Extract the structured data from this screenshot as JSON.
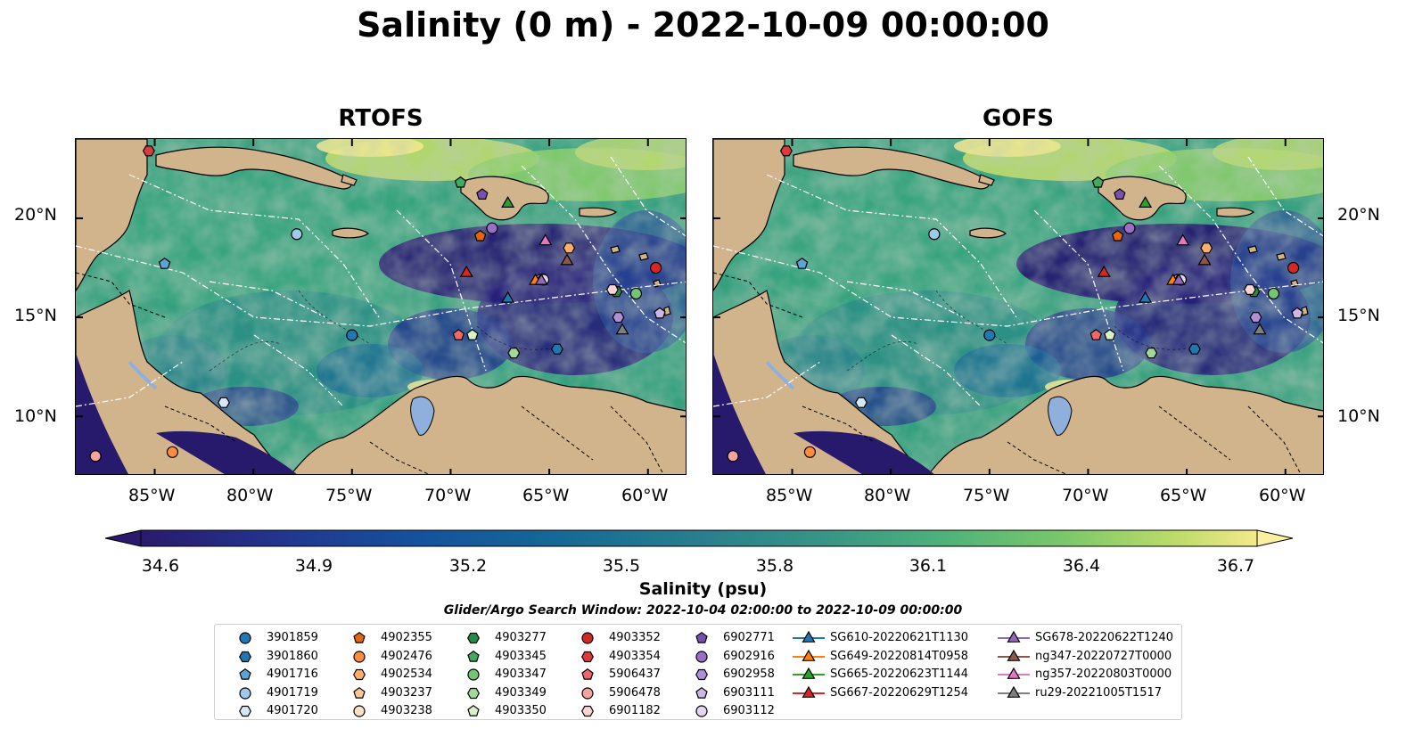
{
  "title": "Salinity (0 m) - 2022-10-09 00:00:00",
  "panels": [
    {
      "title": "RTOFS"
    },
    {
      "title": "GOFS"
    }
  ],
  "axes": {
    "lat_ticks": [
      "20°N",
      "15°N",
      "10°N"
    ],
    "lon_ticks": [
      "85°W",
      "80°W",
      "75°W",
      "70°W",
      "65°W",
      "60°W"
    ],
    "lon_range": [
      -89,
      -58
    ],
    "lat_range": [
      7,
      24
    ]
  },
  "colorbar": {
    "label": "Salinity (psu)",
    "ticks": [
      "34.6",
      "34.9",
      "35.2",
      "35.5",
      "35.8",
      "36.1",
      "36.4",
      "36.7"
    ],
    "range": [
      34.6,
      36.7
    ],
    "colormap": "haline",
    "extend": "both"
  },
  "search_window": "Glider/Argo Search Window: 2022-10-04 02:00:00 to 2022-10-09 00:00:00",
  "legend": {
    "columns": [
      [
        {
          "label": "3901859",
          "marker": "circle",
          "color": "#1f77b4"
        },
        {
          "label": "3901860",
          "marker": "hexagon",
          "color": "#1f77b4"
        },
        {
          "label": "4901716",
          "marker": "pentagon",
          "color": "#5ea3d8"
        },
        {
          "label": "4901719",
          "marker": "circle",
          "color": "#9ecae9"
        },
        {
          "label": "4901720",
          "marker": "hexagon",
          "color": "#d6e8f5"
        }
      ],
      [
        {
          "label": "4902355",
          "marker": "pentagon",
          "color": "#e6650d"
        },
        {
          "label": "4902476",
          "marker": "circle",
          "color": "#fd8d3c"
        },
        {
          "label": "4902534",
          "marker": "hexagon",
          "color": "#fdae6b"
        },
        {
          "label": "4903237",
          "marker": "pentagon",
          "color": "#fdc795"
        },
        {
          "label": "4903238",
          "marker": "circle",
          "color": "#fee0c4"
        }
      ],
      [
        {
          "label": "4903277",
          "marker": "hexagon",
          "color": "#238b45"
        },
        {
          "label": "4903345",
          "marker": "pentagon",
          "color": "#41ab5d"
        },
        {
          "label": "4903347",
          "marker": "circle",
          "color": "#74c476"
        },
        {
          "label": "4903349",
          "marker": "hexagon",
          "color": "#a1d99b"
        },
        {
          "label": "4903350",
          "marker": "pentagon",
          "color": "#d9f0c9"
        }
      ],
      [
        {
          "label": "4903352",
          "marker": "circle",
          "color": "#d62728"
        },
        {
          "label": "4903354",
          "marker": "hexagon",
          "color": "#de3a3a"
        },
        {
          "label": "5906437",
          "marker": "pentagon",
          "color": "#f0666a"
        },
        {
          "label": "5906478",
          "marker": "circle",
          "color": "#f4a3a0"
        },
        {
          "label": "6901182",
          "marker": "hexagon",
          "color": "#fcd5d2"
        }
      ],
      [
        {
          "label": "6902771",
          "marker": "pentagon",
          "color": "#7b4fb0"
        },
        {
          "label": "6902916",
          "marker": "circle",
          "color": "#9b6fc7"
        },
        {
          "label": "6902958",
          "marker": "hexagon",
          "color": "#b08fd6"
        },
        {
          "label": "6903111",
          "marker": "pentagon",
          "color": "#cdb6e8"
        },
        {
          "label": "6903112",
          "marker": "circle",
          "color": "#e4d6f3"
        }
      ],
      [
        {
          "label": "SG610-20220621T1130",
          "marker": "triangle",
          "color": "#1f77b4"
        },
        {
          "label": "SG649-20220814T0958",
          "marker": "triangle",
          "color": "#ff7f0e"
        },
        {
          "label": "SG665-20220623T1144",
          "marker": "triangle",
          "color": "#2ca02c"
        },
        {
          "label": "SG667-20220629T1254",
          "marker": "triangle",
          "color": "#d62728"
        }
      ],
      [
        {
          "label": "SG678-20220622T1240",
          "marker": "triangle",
          "color": "#9467bd"
        },
        {
          "label": "ng347-20220727T0000",
          "marker": "triangle",
          "color": "#8c564b"
        },
        {
          "label": "ng357-20220803T0000",
          "marker": "triangle",
          "color": "#e377c2"
        },
        {
          "label": "ru29-20221005T1517",
          "marker": "triangle",
          "color": "#7f7f7f"
        }
      ]
    ]
  },
  "observations": [
    {
      "id": "3901859",
      "lon": -75.0,
      "lat": 14.1
    },
    {
      "id": "3901860",
      "lon": -64.6,
      "lat": 13.4
    },
    {
      "id": "4901716",
      "lon": -84.5,
      "lat": 17.7
    },
    {
      "id": "4901719",
      "lon": -77.8,
      "lat": 19.2
    },
    {
      "id": "4901720",
      "lon": -81.5,
      "lat": 10.7
    },
    {
      "id": "4902355",
      "lon": -68.5,
      "lat": 19.1
    },
    {
      "id": "4902476",
      "lon": -84.1,
      "lat": 8.2
    },
    {
      "id": "4902534",
      "lon": -64.0,
      "lat": 18.5
    },
    {
      "id": "4903237",
      "lon": -65.5,
      "lat": 16.9
    },
    {
      "id": "4903238",
      "lon": -65.3,
      "lat": 16.9
    },
    {
      "id": "4903277",
      "lon": -61.6,
      "lat": 16.3
    },
    {
      "id": "4903345",
      "lon": -69.5,
      "lat": 21.8
    },
    {
      "id": "4903347",
      "lon": -60.6,
      "lat": 16.2
    },
    {
      "id": "4903349",
      "lon": -66.8,
      "lat": 13.2
    },
    {
      "id": "4903350",
      "lon": -68.9,
      "lat": 14.1
    },
    {
      "id": "4903352",
      "lon": -59.6,
      "lat": 17.5
    },
    {
      "id": "4903354",
      "lon": -85.3,
      "lat": 23.4
    },
    {
      "id": "5906437",
      "lon": -69.6,
      "lat": 14.1
    },
    {
      "id": "5906478",
      "lon": -88.0,
      "lat": 8.0
    },
    {
      "id": "6901182",
      "lon": -61.8,
      "lat": 16.4
    },
    {
      "id": "6902771",
      "lon": -68.4,
      "lat": 21.2
    },
    {
      "id": "6902916",
      "lon": -67.9,
      "lat": 19.5
    },
    {
      "id": "6902958",
      "lon": -61.5,
      "lat": 15.0
    },
    {
      "id": "6903111",
      "lon": -59.4,
      "lat": 15.2
    },
    {
      "id": "6903112",
      "lon": -65.3,
      "lat": 16.9
    },
    {
      "id": "SG610-20220621T1130",
      "lon": -67.1,
      "lat": 16.0
    },
    {
      "id": "SG649-20220814T0958",
      "lon": -65.7,
      "lat": 16.9
    },
    {
      "id": "SG665-20220623T1144",
      "lon": -67.1,
      "lat": 20.8
    },
    {
      "id": "SG667-20220629T1254",
      "lon": -69.2,
      "lat": 17.3
    },
    {
      "id": "SG678-20220622T1240",
      "lon": -65.4,
      "lat": 16.9
    },
    {
      "id": "ng347-20220727T0000",
      "lon": -64.1,
      "lat": 17.9
    },
    {
      "id": "ng357-20220803T0000",
      "lon": -65.2,
      "lat": 18.9
    },
    {
      "id": "ru29-20221005T1517",
      "lon": -61.3,
      "lat": 14.4
    }
  ]
}
